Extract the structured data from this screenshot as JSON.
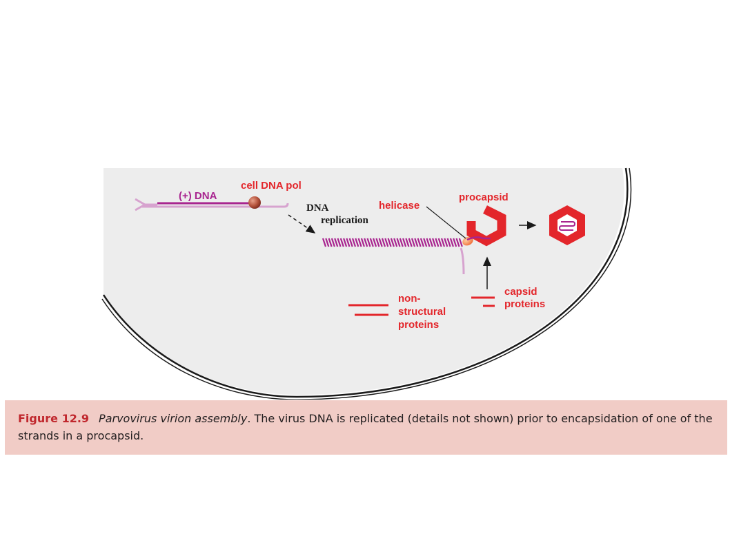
{
  "diagram": {
    "labels": {
      "plus_dna": "(+) DNA",
      "cell_dna_pol": "cell DNA pol",
      "dna_replication_line1": "DNA",
      "dna_replication_line2": "replication",
      "helicase": "helicase",
      "procapsid": "procapsid",
      "non_structural_line1": "non-",
      "non_structural_line2": "structural",
      "non_structural_line3": "proteins",
      "capsid_line1": "capsid",
      "capsid_line2": "proteins"
    },
    "colors": {
      "cell_fill": "#ededed",
      "dna_plus_strand": "#a8248f",
      "dna_minus_strand": "#d7a3cf",
      "protein_red": "#e3262b",
      "polymerase": "#b5533c",
      "helicase": "#f2804b",
      "membrane": "#1a1a1a"
    }
  },
  "caption": {
    "figure_number": "Figure 12.9",
    "title": "Parvovirus virion assembly",
    "text": ". The virus DNA is replicated (details not shown) prior to encapsidation of one of the strands in a procapsid."
  }
}
